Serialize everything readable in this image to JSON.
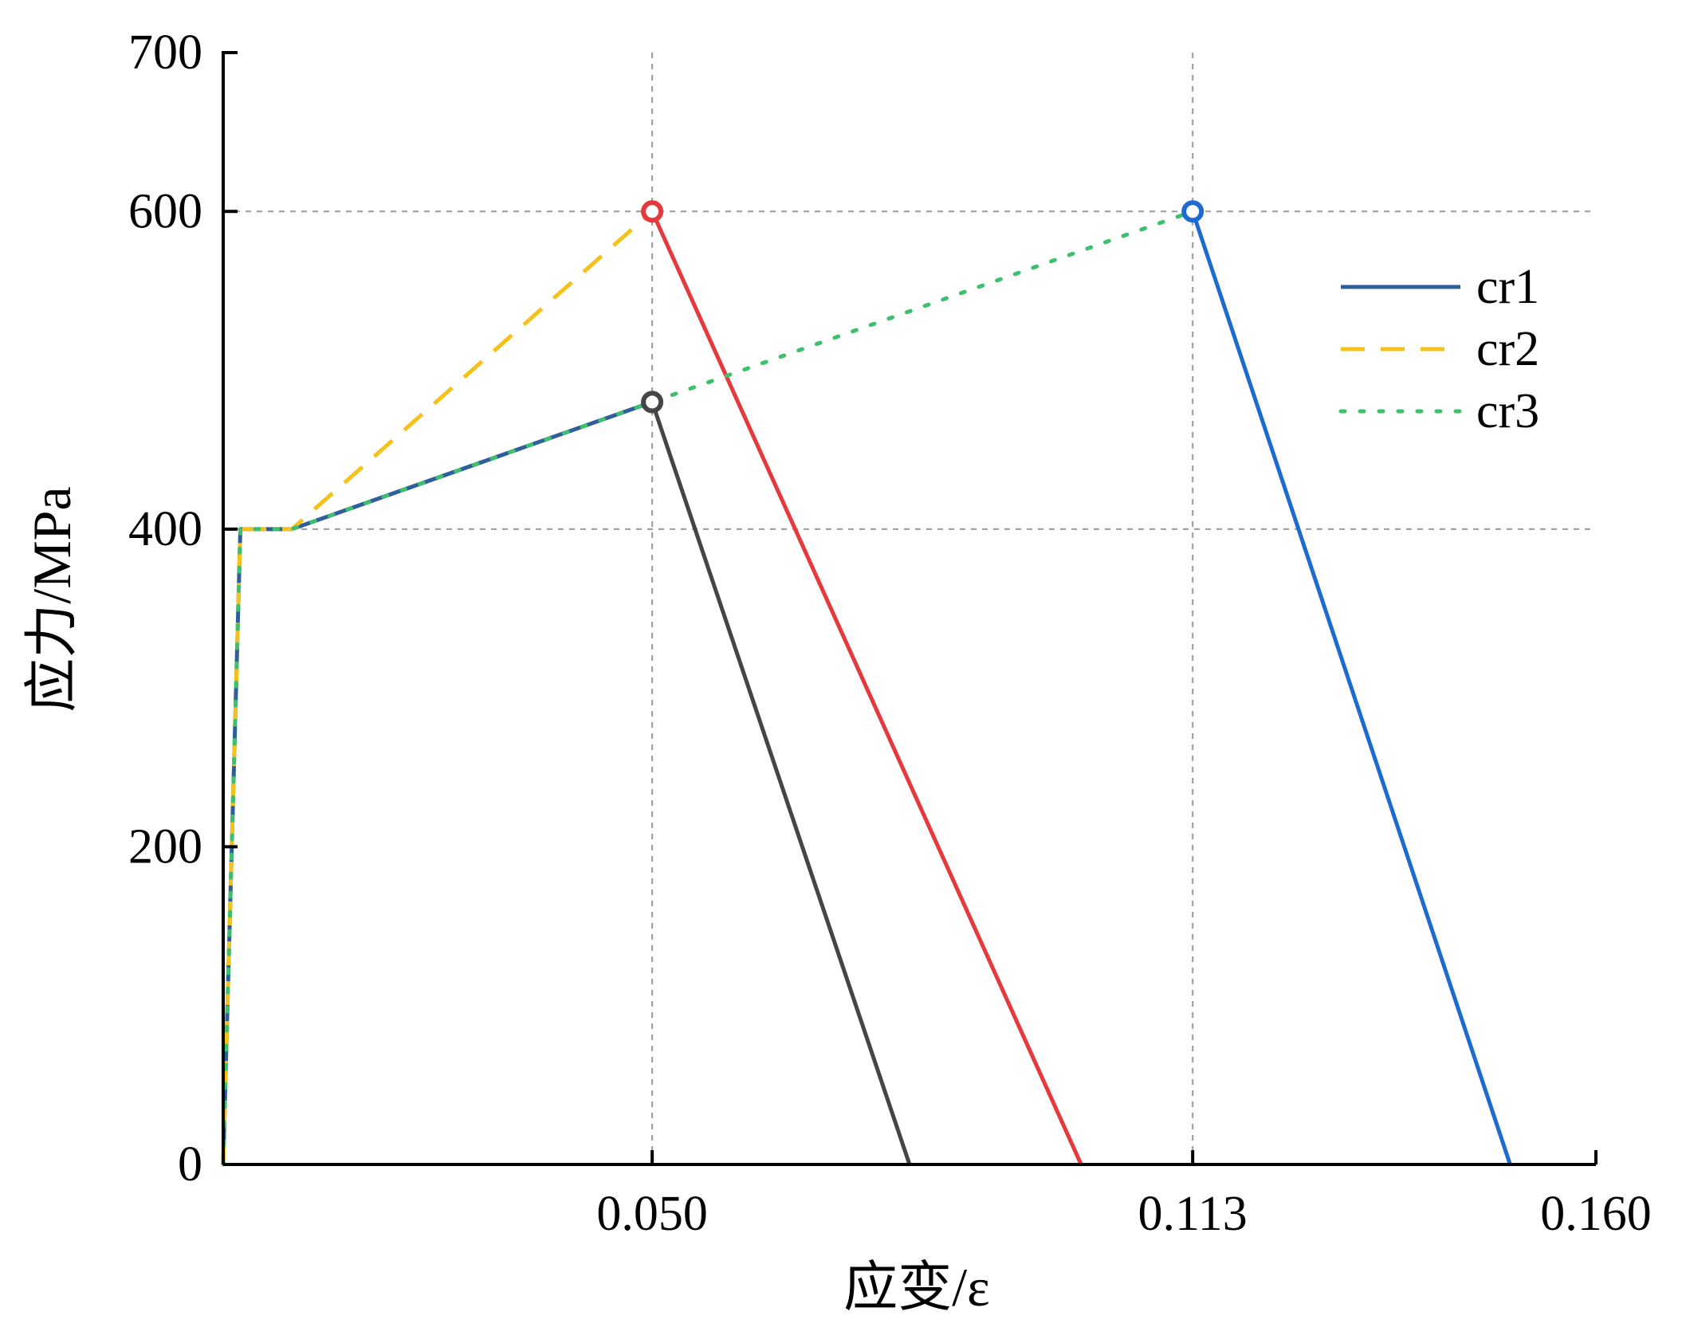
{
  "chart_data": {
    "type": "line",
    "xlabel": "应变/ε",
    "ylabel": "应力/MPa",
    "xlim": [
      0,
      0.16
    ],
    "ylim": [
      0,
      700
    ],
    "x_ticks": [
      {
        "value": 0.05,
        "label": "0.050"
      },
      {
        "value": 0.113,
        "label": "0.113"
      },
      {
        "value": 0.16,
        "label": "0.160"
      }
    ],
    "y_ticks": [
      {
        "value": 0,
        "label": "0"
      },
      {
        "value": 200,
        "label": "200"
      },
      {
        "value": 400,
        "label": "400"
      },
      {
        "value": 600,
        "label": "600"
      },
      {
        "value": 700,
        "label": "700"
      }
    ],
    "grid": {
      "x": [
        0.05,
        0.113
      ],
      "y": [
        400,
        600
      ]
    },
    "legend_position": "top-right",
    "series": [
      {
        "name": "cr1",
        "color": "#2f5f9a",
        "dash": "solid",
        "x": [
          0,
          0.002,
          0.008,
          0.05
        ],
        "y": [
          0,
          400,
          400,
          480
        ]
      },
      {
        "name": "cr2",
        "color": "#f5c11b",
        "dash": "dashed",
        "x": [
          0,
          0.002,
          0.008,
          0.05
        ],
        "y": [
          0,
          400,
          400,
          600
        ]
      },
      {
        "name": "cr3",
        "color": "#3dbf6e",
        "dash": "dotted",
        "x": [
          0,
          0.002,
          0.008,
          0.05,
          0.113
        ],
        "y": [
          0,
          400,
          400,
          480,
          600
        ]
      }
    ],
    "unloading_lines": [
      {
        "color": "#454545",
        "x": [
          0.05,
          0.08
        ],
        "y": [
          480,
          0
        ]
      },
      {
        "color": "#e5393d",
        "x": [
          0.05,
          0.1
        ],
        "y": [
          600,
          0
        ]
      },
      {
        "color": "#1f6ad1",
        "x": [
          0.113,
          0.15
        ],
        "y": [
          600,
          0
        ]
      }
    ],
    "markers": [
      {
        "x": 0.05,
        "y": 480,
        "color": "#454545"
      },
      {
        "x": 0.05,
        "y": 600,
        "color": "#e5393d"
      },
      {
        "x": 0.113,
        "y": 600,
        "color": "#1f6ad1"
      }
    ]
  }
}
